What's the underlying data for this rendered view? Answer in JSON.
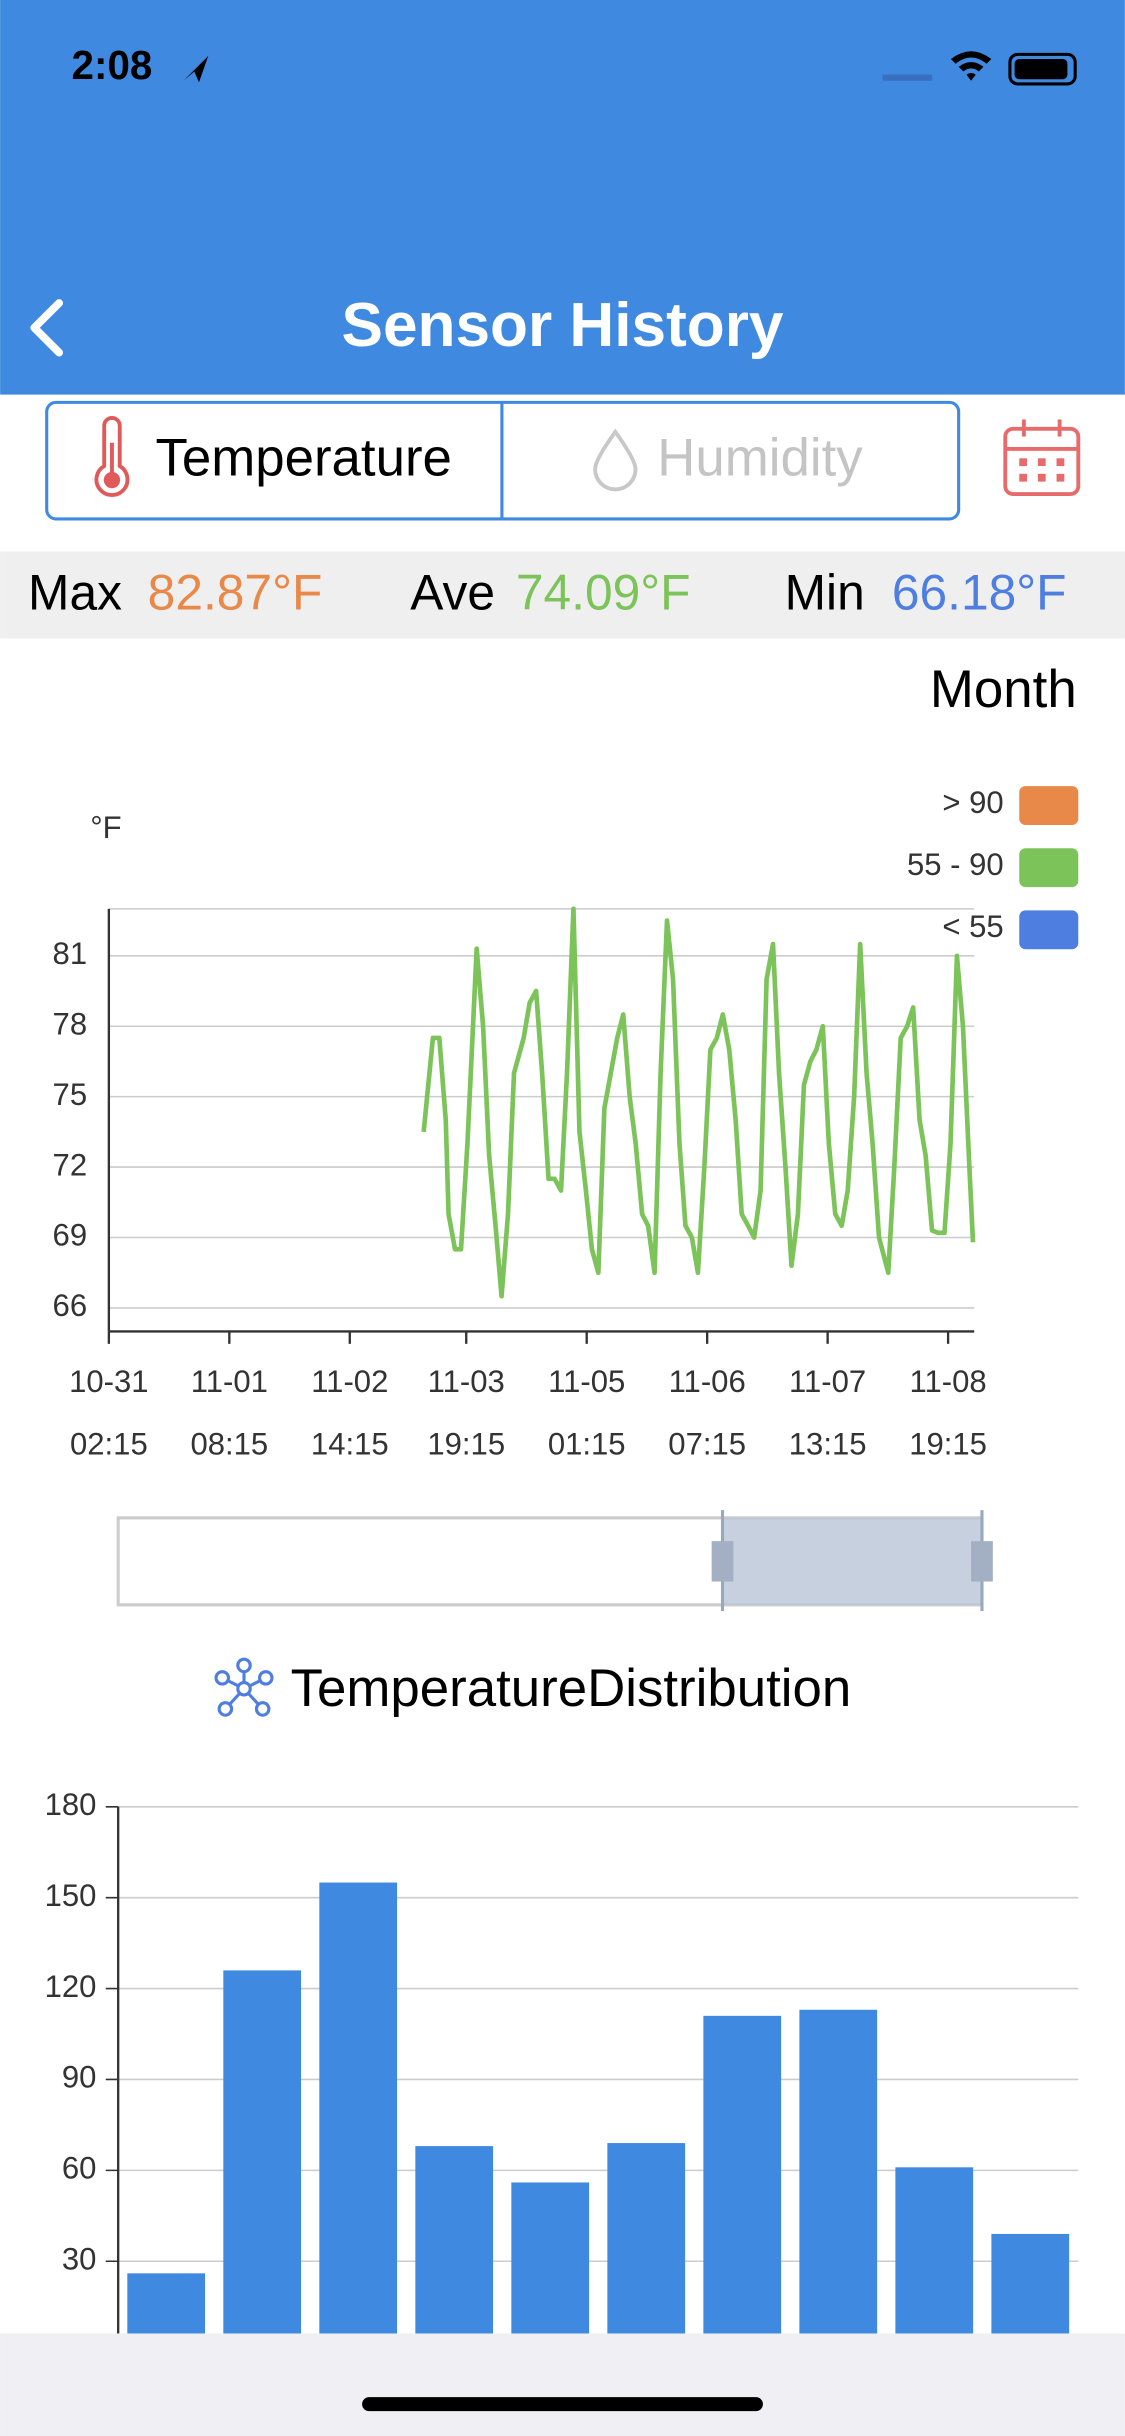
{
  "status_bar": {
    "time": "2:08"
  },
  "nav": {
    "title": "Sensor History"
  },
  "tabs": [
    {
      "label": "Temperature"
    },
    {
      "label": "Humidity"
    }
  ],
  "stats": [
    {
      "label": "Max",
      "value": "82.87°F"
    },
    {
      "label": "Ave",
      "value": "74.09°F"
    },
    {
      "label": "Min",
      "value": "66.18°F"
    }
  ],
  "range": "Month",
  "chart_data": [
    {
      "type": "line",
      "y_label": "°F",
      "legend": [
        {
          "label": "> 90",
          "color": "#e8894a"
        },
        {
          "label": "55 - 90",
          "color": "#7cc35a"
        },
        {
          "label": "< 55",
          "color": "#4e7fe0"
        }
      ],
      "xlim": [
        0,
        215.5
      ],
      "xticks": [
        {
          "value": 0,
          "label": "10-31 02:15"
        },
        {
          "value": 30,
          "label": "11-01 08:15"
        },
        {
          "value": 60,
          "label": "11-02 14:15"
        },
        {
          "value": 89,
          "label": "11-03 19:15"
        },
        {
          "value": 119,
          "label": "11-05 01:15"
        },
        {
          "value": 149,
          "label": "11-06 07:15"
        },
        {
          "value": 179,
          "label": "11-07 13:15"
        },
        {
          "value": 209,
          "label": "11-08 19:15"
        }
      ],
      "ylim": [
        65,
        83
      ],
      "yticks": [
        66,
        69,
        72,
        75,
        78,
        81
      ],
      "grid": true,
      "series": [
        {
          "color": "#7cc35a",
          "x": [
            78.4,
            80.7,
            82.3,
            83.9,
            84.6,
            86.2,
            87.7,
            89.3,
            91.6,
            93.2,
            94.7,
            96.3,
            97.8,
            99.4,
            100.9,
            103.3,
            104.8,
            106.4,
            107.9,
            109.5,
            111.0,
            112.6,
            114.1,
            115.7,
            117.2,
            118.8,
            120.3,
            121.9,
            123.4,
            125.0,
            126.6,
            128.1,
            129.7,
            131.2,
            132.8,
            134.3,
            135.9,
            137.4,
            139.0,
            140.5,
            142.1,
            143.6,
            145.2,
            146.7,
            148.3,
            149.8,
            151.4,
            152.9,
            154.5,
            156.1,
            157.6,
            159.2,
            160.7,
            162.3,
            163.8,
            165.4,
            166.9,
            168.5,
            170.0,
            171.6,
            173.1,
            174.7,
            176.2,
            177.8,
            179.3,
            180.9,
            182.5,
            184.0,
            185.6,
            187.1,
            188.7,
            190.2,
            191.8,
            194.1,
            195.6,
            197.2,
            198.8,
            200.3,
            201.9,
            203.4,
            205.0,
            206.5,
            208.1,
            209.6,
            211.2,
            212.7,
            214.3,
            215.2
          ],
          "values": [
            73.5,
            77.5,
            77.5,
            74,
            70,
            68.5,
            68.5,
            73,
            81.3,
            78,
            72.5,
            69.5,
            66.5,
            70,
            76,
            77.5,
            79,
            79.5,
            76,
            71.5,
            71.5,
            71,
            76,
            83,
            73.5,
            71,
            68.5,
            67.5,
            74.5,
            76,
            77.5,
            78.5,
            75,
            73,
            70,
            69.5,
            67.5,
            76,
            82.5,
            80,
            73,
            69.5,
            69,
            67.5,
            72,
            77,
            77.5,
            78.5,
            77,
            74,
            70,
            69.5,
            69,
            71,
            80,
            81.5,
            76,
            72,
            67.8,
            70,
            75.5,
            76.5,
            77,
            78,
            73,
            70,
            69.5,
            71,
            75,
            81.5,
            76,
            73,
            69,
            67.5,
            72,
            77.5,
            78,
            78.8,
            74,
            72.5,
            69.3,
            69.2,
            69.2,
            73,
            81,
            78,
            72,
            68.8
          ]
        }
      ]
    },
    {
      "type": "bar",
      "title": "TemperatureDistribution",
      "color": "#3f8ae0",
      "categories": [
        null,
        null,
        null,
        null,
        null,
        null,
        null,
        null,
        null,
        null
      ],
      "values": [
        26,
        126,
        155,
        68,
        56,
        69,
        111,
        113,
        61,
        39
      ],
      "ylim": [
        0,
        180
      ],
      "yticks": [
        30,
        60,
        90,
        120,
        150,
        180
      ],
      "grid": true
    }
  ]
}
